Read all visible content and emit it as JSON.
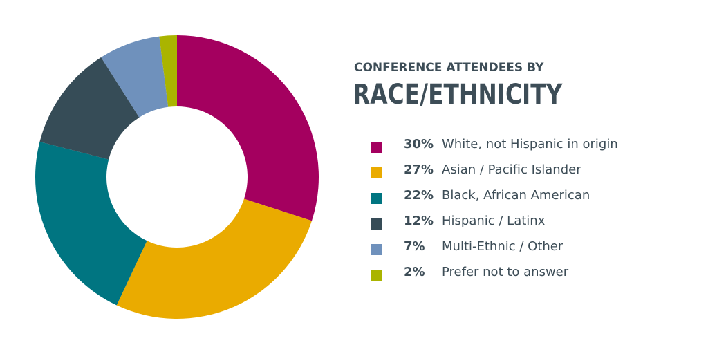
{
  "chart_data": {
    "type": "pie",
    "subtitle": "CONFERENCE ATTENDEES BY",
    "title": "RACE/ETHNICITY",
    "series": [
      {
        "percent_label": "30%",
        "label": "White, not Hispanic in origin",
        "value": 30,
        "color": "#a4005f"
      },
      {
        "percent_label": "27%",
        "label": "Asian / Pacific Islander",
        "value": 27,
        "color": "#eaab00"
      },
      {
        "percent_label": "22%",
        "label": "Black, African American",
        "value": 22,
        "color": "#007581"
      },
      {
        "percent_label": "12%",
        "label": "Hispanic / Latinx",
        "value": 12,
        "color": "#364c57"
      },
      {
        "percent_label": "7%",
        "label": "Multi-Ethnic / Other",
        "value": 7,
        "color": "#6f91bc"
      },
      {
        "percent_label": "2%",
        "label": "Prefer not to answer",
        "value": 2,
        "color": "#aab400"
      }
    ],
    "donut": true,
    "legend_position": "right"
  }
}
